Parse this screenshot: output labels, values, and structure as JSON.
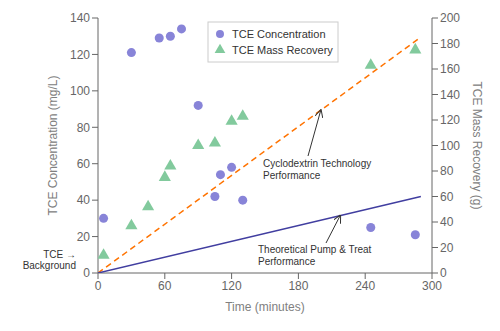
{
  "chart_data": {
    "type": "scatter",
    "xlabel": "Time (minutes)",
    "ylabel": "TCE Concentration (mg/L)",
    "y2label": "TCE Mass Recovery (g)",
    "xlim": [
      0,
      300
    ],
    "xticks": [
      0,
      60,
      120,
      180,
      240,
      300
    ],
    "ylim": [
      0,
      140
    ],
    "yticks": [
      0,
      20,
      40,
      60,
      80,
      100,
      120,
      140
    ],
    "y2lim": [
      0,
      200
    ],
    "y2ticks": [
      0,
      20,
      40,
      60,
      80,
      100,
      120,
      140,
      160,
      180,
      200
    ],
    "grid": false,
    "legend": "upper right",
    "series": [
      {
        "name": "TCE Concentration",
        "x": [
          5,
          30,
          55,
          65,
          75,
          90,
          105,
          110,
          120,
          130,
          245,
          285
        ],
        "values": [
          30,
          121,
          129,
          130,
          134,
          92,
          42,
          54,
          58,
          40,
          25,
          21
        ],
        "marker": "circle",
        "color": "#8884d8"
      },
      {
        "name": "TCE Mass Recovery",
        "axis": "y2",
        "x": [
          5,
          30,
          45,
          60,
          65,
          90,
          105,
          120,
          130,
          245,
          285
        ],
        "values": [
          14,
          37,
          52,
          75,
          84,
          100,
          102,
          119,
          123,
          163,
          175
        ],
        "marker": "triangle",
        "color": "#82ca9d"
      },
      {
        "type": "line",
        "axis": "y2",
        "x": [
          0,
          290
        ],
        "values": [
          0,
          185
        ],
        "line_style": "dashed",
        "color": "#ff7300"
      },
      {
        "type": "line",
        "axis": "y2",
        "x": [
          0,
          290
        ],
        "values": [
          0,
          60
        ],
        "line_style": "solid",
        "color": "#413ea0"
      }
    ],
    "annotations": [
      "Cyclodextrin Technology\nPerformance",
      "Theoretical Pump & Treat\nPerformance",
      "TCE →\nBackground"
    ]
  }
}
